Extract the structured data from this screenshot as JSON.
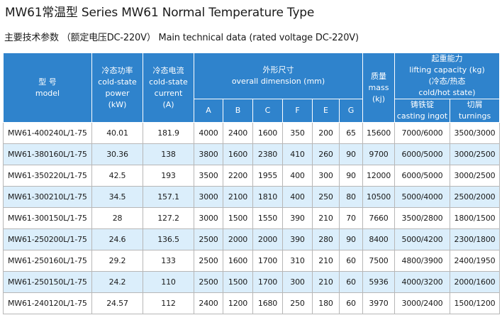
{
  "title": "MW61常温型   Series MW61 Normal Temperature Type",
  "subtitle": "主要技术参数 （额定电压DC-220V） Main technical data (rated voltage DC-220V)",
  "header": {
    "model": [
      "型 号",
      "model"
    ],
    "cold_power": [
      "冷态功率",
      "cold-state",
      "power",
      "(kW)"
    ],
    "cold_current": [
      "冷态电流",
      "cold-state",
      "current",
      "(A)"
    ],
    "overall_dimension": [
      "外形尺寸",
      "overall dimension (mm)"
    ],
    "dims": [
      "A",
      "B",
      "C",
      "F",
      "E",
      "G"
    ],
    "mass": [
      "质量",
      "mass",
      "(kj)"
    ],
    "lifting_capacity": [
      "起重能力",
      "lifting capacity  (kg)",
      "(冷态/热态",
      "cold/hot state)"
    ],
    "casting_ingot": [
      "铸铁锭",
      "casting ingot"
    ],
    "turnings": [
      "切屑",
      "turnings"
    ]
  },
  "rows": [
    {
      "model": "MW61-400240L/1-75",
      "power": "40.01",
      "current": "181.9",
      "A": "4000",
      "B": "2400",
      "C": "1600",
      "F": "350",
      "E": "200",
      "G": "65",
      "mass": "15600",
      "casting": "7000/6000",
      "turnings": "3500/3000"
    },
    {
      "model": "MW61-380160L/1-75",
      "power": "30.36",
      "current": "138",
      "A": "3800",
      "B": "1600",
      "C": "2380",
      "F": "410",
      "E": "260",
      "G": "90",
      "mass": "9700",
      "casting": "6000/5000",
      "turnings": "3000/2500"
    },
    {
      "model": "MW61-350220L/1-75",
      "power": "42.5",
      "current": "193",
      "A": "3500",
      "B": "2200",
      "C": "1955",
      "F": "400",
      "E": "300",
      "G": "90",
      "mass": "12000",
      "casting": "6000/5000",
      "turnings": "3000/2500"
    },
    {
      "model": "MW61-300210L/1-75",
      "power": "34.5",
      "current": "157.1",
      "A": "3000",
      "B": "2100",
      "C": "1810",
      "F": "400",
      "E": "250",
      "G": "80",
      "mass": "10500",
      "casting": "5000/4000",
      "turnings": "2500/2000"
    },
    {
      "model": "MW61-300150L/1-75",
      "power": "28",
      "current": "127.2",
      "A": "3000",
      "B": "1500",
      "C": "1550",
      "F": "390",
      "E": "210",
      "G": "70",
      "mass": "7660",
      "casting": "3500/2800",
      "turnings": "1800/1500"
    },
    {
      "model": "MW61-250200L/1-75",
      "power": "24.6",
      "current": "136.5",
      "A": "2500",
      "B": "2000",
      "C": "2000",
      "F": "390",
      "E": "280",
      "G": "90",
      "mass": "8400",
      "casting": "5000/4200",
      "turnings": "2300/1800"
    },
    {
      "model": "MW61-250160L/1-75",
      "power": "29.2",
      "current": "133",
      "A": "2500",
      "B": "1600",
      "C": "1700",
      "F": "310",
      "E": "210",
      "G": "60",
      "mass": "7500",
      "casting": "4800/3900",
      "turnings": "2400/1950"
    },
    {
      "model": "MW61-250150L/1-75",
      "power": "24.2",
      "current": "110",
      "A": "2500",
      "B": "1500",
      "C": "1700",
      "F": "300",
      "E": "210",
      "G": "60",
      "mass": "5936",
      "casting": "4000/3200",
      "turnings": "2000/1600"
    },
    {
      "model": "MW61-240120L/1-75",
      "power": "24.57",
      "current": "112",
      "A": "2400",
      "B": "1200",
      "C": "1680",
      "F": "250",
      "E": "180",
      "G": "60",
      "mass": "3970",
      "casting": "3000/2400",
      "turnings": "1500/1200"
    }
  ]
}
